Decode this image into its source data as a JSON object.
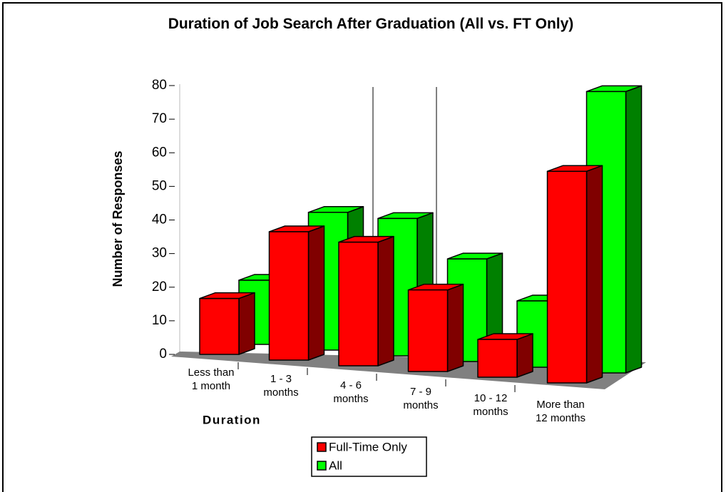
{
  "chart_data": {
    "type": "bar3d",
    "title": "Duration of Job Search After Graduation (All vs. FT Only)",
    "x_label": "Duration",
    "y_label": "Number of Responses",
    "categories": [
      "Less than 1 month",
      "1 - 3 months",
      "4 - 6 months",
      "7 - 9 months",
      "10 - 12 months",
      "More than 12 months"
    ],
    "series": [
      {
        "name": "Full-Time Only",
        "color": "#ff0000",
        "side_color": "#800000",
        "values": [
          16,
          36,
          34,
          22,
          10,
          55
        ]
      },
      {
        "name": "All",
        "color": "#00ff00",
        "side_color": "#008000",
        "values": [
          20,
          42,
          41,
          30,
          19,
          79
        ]
      }
    ],
    "ylim": [
      0,
      80
    ],
    "yticks": [
      0,
      10,
      20,
      30,
      40,
      50,
      60,
      70,
      80
    ]
  }
}
